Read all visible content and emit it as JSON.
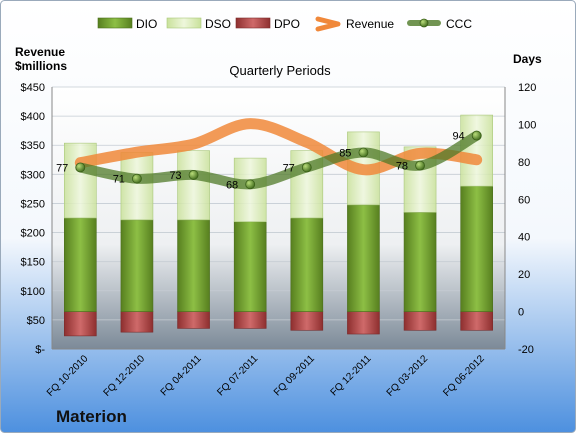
{
  "chart_data": {
    "type": "bar",
    "title": "Quarterly Periods",
    "company": "Materion",
    "ylabel_left": "Revenue\n$millions",
    "ylabel_right": "Days",
    "categories": [
      "FQ 10-2010",
      "FQ 12-2010",
      "FQ 04-2011",
      "FQ 07-2011",
      "FQ 09-2011",
      "FQ 12-2011",
      "FQ 03-2012",
      "FQ 06-2012"
    ],
    "left_axis": {
      "min": 0,
      "max": 450,
      "step": 50,
      "tick_labels": [
        "$-",
        "$50",
        "$100",
        "$150",
        "$200",
        "$250",
        "$300",
        "$350",
        "$400",
        "$450"
      ]
    },
    "right_axis": {
      "min": -20,
      "max": 120,
      "step": 20,
      "tick_labels": [
        "-20",
        "0",
        "20",
        "40",
        "60",
        "80",
        "100",
        "120"
      ]
    },
    "legend_position": "top",
    "series": [
      {
        "name": "DIO",
        "axis": "right",
        "kind": "stacked-bar",
        "color": "#6a9a2a",
        "values": [
          50,
          49,
          49,
          48,
          50,
          57,
          53,
          67
        ]
      },
      {
        "name": "DSO",
        "axis": "right",
        "kind": "stacked-bar",
        "color": "#d9ecb4",
        "values": [
          40,
          36,
          37,
          34,
          36,
          39,
          35,
          38
        ]
      },
      {
        "name": "DPO",
        "axis": "right",
        "kind": "bar-below-zero",
        "color": "#b84a4a",
        "values": [
          -13,
          -11,
          -9,
          -9,
          -10,
          -12,
          -10,
          -10
        ]
      },
      {
        "name": "Revenue",
        "axis": "left",
        "kind": "line",
        "color": "#f0883a",
        "values": [
          320,
          338,
          352,
          387,
          355,
          308,
          336,
          325
        ]
      },
      {
        "name": "CCC",
        "axis": "right",
        "kind": "line",
        "color": "#4f7a28",
        "values": [
          77,
          71,
          73,
          68,
          77,
          85,
          78,
          94
        ],
        "labels": [
          "77",
          "71",
          "73",
          "68",
          "77",
          "85",
          "78",
          "94"
        ]
      }
    ]
  }
}
